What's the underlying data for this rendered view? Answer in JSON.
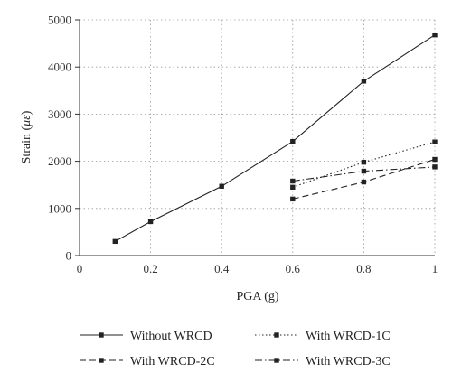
{
  "chart_data": {
    "type": "line",
    "title": "",
    "xlabel": "PGA (g)",
    "ylabel_prefix": "Strain (",
    "ylabel_unit": "με",
    "ylabel_suffix": ")",
    "xlim": [
      0,
      1
    ],
    "ylim": [
      0,
      5000
    ],
    "x_ticks": [
      {
        "value": 0,
        "label": "0"
      },
      {
        "value": 0.2,
        "label": "0.2"
      },
      {
        "value": 0.4,
        "label": "0.4"
      },
      {
        "value": 0.6,
        "label": "0.6"
      },
      {
        "value": 0.8,
        "label": "0.8"
      },
      {
        "value": 1,
        "label": "1"
      }
    ],
    "y_ticks": [
      {
        "value": 0,
        "label": "0"
      },
      {
        "value": 1000,
        "label": "1000"
      },
      {
        "value": 2000,
        "label": "2000"
      },
      {
        "value": 3000,
        "label": "3000"
      },
      {
        "value": 4000,
        "label": "4000"
      },
      {
        "value": 5000,
        "label": "5000"
      }
    ],
    "grid": true,
    "legend_position": "bottom",
    "series": [
      {
        "name": "Without WRCD",
        "color": "#222222",
        "line_style": "solid",
        "x": [
          0.1,
          0.2,
          0.4,
          0.6,
          0.8,
          1.0
        ],
        "y": [
          300,
          720,
          1470,
          2420,
          3700,
          4680
        ]
      },
      {
        "name": "With WRCD-1C",
        "color": "#222222",
        "line_style": "dotted",
        "x": [
          0.6,
          0.8,
          1.0
        ],
        "y": [
          1450,
          1980,
          2410
        ]
      },
      {
        "name": "With WRCD-2C",
        "color": "#222222",
        "line_style": "dashed",
        "x": [
          0.6,
          0.8,
          1.0
        ],
        "y": [
          1200,
          1560,
          2040
        ]
      },
      {
        "name": "With WRCD-3C",
        "color": "#222222",
        "line_style": "dashdot",
        "x": [
          0.6,
          0.8,
          1.0
        ],
        "y": [
          1580,
          1790,
          1880
        ]
      }
    ]
  }
}
